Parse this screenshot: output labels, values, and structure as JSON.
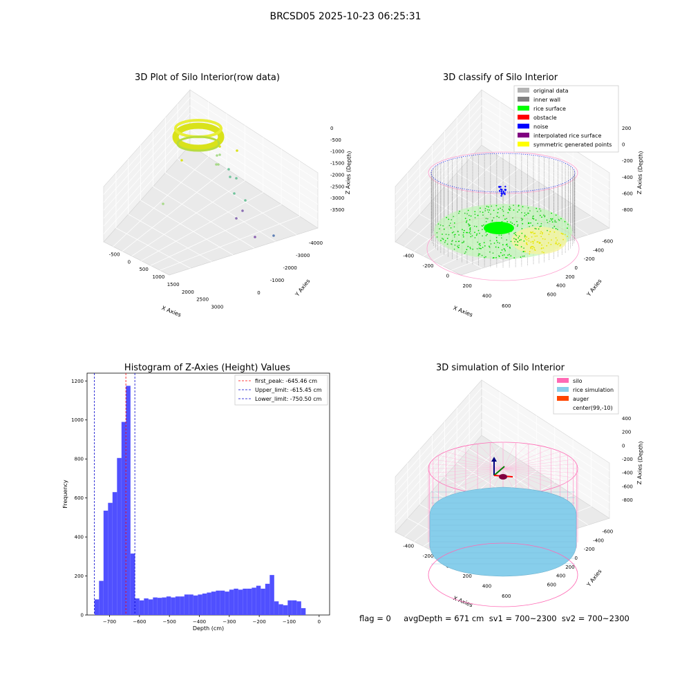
{
  "figure": {
    "title": "BRCSD05 2025-10-23 06:25:31"
  },
  "footer": {
    "text": "flag = 0     avgDepth = 671 cm  sv1 = 700~2300  sv2 = 700~2300"
  },
  "chart_data": [
    {
      "type": "scatter",
      "title": "3D Plot of Silo Interior(row data)",
      "xlabel": "X Axies",
      "ylabel": "Y Axies",
      "zlabel": "Z Axies (Depth)",
      "x_ticks": [
        "-500",
        "0",
        "500",
        "1000",
        "1500",
        "2000",
        "2500",
        "3000"
      ],
      "y_ticks": [
        "0",
        "-1000",
        "-2000",
        "-3000",
        "-4000"
      ],
      "z_ticks": [
        "0",
        "-500",
        "-1000",
        "-1500",
        "-2000",
        "-2500",
        "-3000",
        "-3500"
      ],
      "xlim": [
        -600,
        3200
      ],
      "ylim": [
        -4200,
        600
      ],
      "zlim": [
        -3900,
        100
      ],
      "colors": {
        "main": "#d9e21a",
        "outlier_light": "#a8d98a",
        "outlier_mid": "#6fc39a",
        "outlier_purple": "#8b6fb3"
      }
    },
    {
      "type": "scatter",
      "title": "3D classify of Silo Interior",
      "xlabel": "X Axies",
      "ylabel": "Y Axies",
      "zlabel": "Z Axies (Depth)",
      "x_ticks": [
        "-400",
        "-200",
        "0",
        "200",
        "400",
        "600"
      ],
      "y_ticks": [
        "600",
        "400",
        "200",
        "0",
        "-200",
        "-400",
        "-600"
      ],
      "z_ticks": [
        "200",
        "0",
        "-200",
        "-400",
        "-600",
        "-800"
      ],
      "legend": [
        {
          "label": "original data",
          "color": "#b4b4b4"
        },
        {
          "label": "inner wall",
          "color": "#808080"
        },
        {
          "label": "rice surface",
          "color": "#00ff00"
        },
        {
          "label": "obstacle",
          "color": "#ff0000"
        },
        {
          "label": "noise",
          "color": "#0000ff"
        },
        {
          "label": "interpolated rice surface",
          "color": "#800080"
        },
        {
          "label": "symmetric generated points",
          "color": "#ffff00"
        }
      ]
    },
    {
      "type": "bar",
      "title": "Histogram of Z-Axies (Height) Values",
      "xlabel": "Depth (cm)",
      "ylabel": "Frequency",
      "xlim": [
        -775,
        35
      ],
      "ylim": [
        0,
        1240
      ],
      "x_ticks": [
        -700,
        -600,
        -500,
        -400,
        -300,
        -200,
        -100,
        0
      ],
      "y_ticks": [
        0,
        200,
        400,
        600,
        800,
        1000,
        1200
      ],
      "bin_start": -750,
      "bin_width": 15,
      "values": [
        80,
        175,
        535,
        575,
        630,
        805,
        990,
        1175,
        315,
        85,
        75,
        85,
        80,
        90,
        88,
        90,
        95,
        90,
        95,
        95,
        105,
        105,
        100,
        105,
        110,
        115,
        120,
        125,
        125,
        120,
        130,
        135,
        130,
        135,
        135,
        140,
        150,
        135,
        160,
        205,
        70,
        55,
        50,
        75,
        75,
        70,
        35
      ],
      "bar_color": "#5050ff",
      "vlines": [
        {
          "label": "first_peak: -645.46 cm",
          "x": -645.46,
          "color": "#ff0000"
        },
        {
          "label": "Upper_limit: -615.45 cm",
          "x": -615.45,
          "color": "#0000cc"
        },
        {
          "label": "Lower_limit: -750.50 cm",
          "x": -750.5,
          "color": "#0000cc"
        }
      ],
      "legend_position": "top-right"
    },
    {
      "type": "scatter",
      "title": "3D simulation of Silo Interior",
      "xlabel": "X Axies",
      "ylabel": "Y Axies",
      "zlabel": "Z Axies (Depth)",
      "x_ticks": [
        "-400",
        "-200",
        "0",
        "200",
        "400",
        "600"
      ],
      "y_ticks": [
        "600",
        "400",
        "200",
        "0",
        "-200",
        "-400",
        "-600"
      ],
      "z_ticks": [
        "400",
        "200",
        "0",
        "-200",
        "-400",
        "-600",
        "-800"
      ],
      "legend": [
        {
          "label": "silo",
          "color": "#ff69b4"
        },
        {
          "label": "rice simulation",
          "color": "#87ceeb"
        },
        {
          "label": "auger",
          "color": "#ff4500"
        },
        {
          "label": "center(99,-10)",
          "color": "#ffffff"
        }
      ]
    }
  ]
}
